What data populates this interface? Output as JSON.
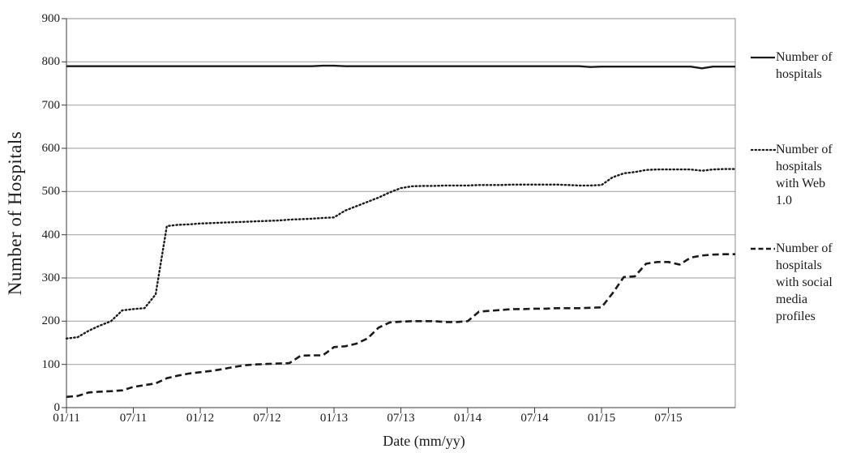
{
  "chart_data": {
    "type": "line",
    "title": "",
    "xlabel": "Date (mm/yy)",
    "ylabel": "Number of Hospitals",
    "x_unit": "month",
    "x_range": [
      "01/11",
      "12/15"
    ],
    "x_tick_labels": [
      "01/11",
      "07/11",
      "01/12",
      "07/12",
      "01/13",
      "07/13",
      "01/14",
      "07/14",
      "01/15",
      "07/15"
    ],
    "x_tick_months": [
      0,
      6,
      12,
      18,
      24,
      30,
      36,
      42,
      48,
      54
    ],
    "y_ticks": [
      0,
      100,
      200,
      300,
      400,
      500,
      600,
      700,
      800,
      900
    ],
    "ylim": [
      0,
      900
    ],
    "grid": "horizontal",
    "legend_position": "right",
    "series": [
      {
        "name": "Number of hospitals",
        "legend_label": "Number of\nhospitals",
        "style": "solid",
        "color": "#1a1a1a",
        "values": [
          790,
          790,
          790,
          790,
          790,
          790,
          790,
          790,
          790,
          790,
          790,
          790,
          790,
          790,
          790,
          790,
          790,
          790,
          790,
          790,
          790,
          790,
          790,
          791,
          791,
          790,
          790,
          790,
          790,
          790,
          790,
          790,
          790,
          790,
          790,
          790,
          790,
          790,
          790,
          790,
          790,
          790,
          790,
          790,
          790,
          790,
          790,
          788,
          789,
          789,
          789,
          789,
          789,
          789,
          789,
          789,
          789,
          785,
          789,
          789
        ]
      },
      {
        "name": "Number of hospitals with Web 1.0",
        "legend_label": "Number of\nhospitals\nwith Web\n1.0",
        "style": "dotted",
        "color": "#1a1a1a",
        "values": [
          160,
          163,
          178,
          190,
          200,
          225,
          228,
          230,
          262,
          420,
          423,
          424,
          426,
          427,
          428,
          429,
          430,
          431,
          432,
          433,
          435,
          436,
          437,
          439,
          440,
          456,
          466,
          476,
          486,
          498,
          508,
          512,
          513,
          513,
          514,
          514,
          514,
          515,
          515,
          515,
          516,
          516,
          516,
          516,
          516,
          515,
          514,
          514,
          515,
          533,
          542,
          545,
          550,
          551,
          551,
          551,
          551,
          548,
          551,
          552
        ]
      },
      {
        "name": "Number of hospitals with social media profiles",
        "legend_label": "Number of\nhospitals\nwith social\nmedia\nprofiles",
        "style": "dashed",
        "color": "#1a1a1a",
        "values": [
          25,
          27,
          35,
          37,
          38,
          40,
          48,
          52,
          56,
          68,
          74,
          79,
          82,
          85,
          89,
          94,
          98,
          100,
          101,
          102,
          103,
          120,
          121,
          121,
          140,
          142,
          148,
          160,
          185,
          197,
          199,
          200,
          200,
          200,
          198,
          198,
          200,
          222,
          224,
          226,
          228,
          228,
          229,
          229,
          230,
          230,
          230,
          231,
          232,
          265,
          302,
          304,
          333,
          337,
          337,
          331,
          347,
          352,
          354,
          355
        ]
      }
    ]
  }
}
